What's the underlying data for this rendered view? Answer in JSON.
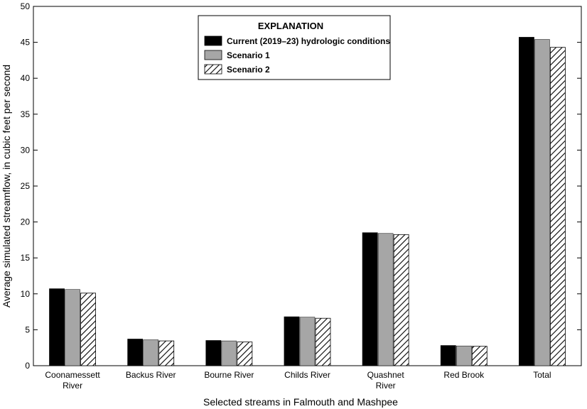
{
  "chart_data": {
    "type": "bar",
    "title": "",
    "xlabel": "Selected streams in Falmouth and Mashpee",
    "ylabel": "Average simulated streamflow, in cubic feet per second",
    "ylim": [
      0,
      50
    ],
    "yticks": [
      0,
      5,
      10,
      15,
      20,
      25,
      30,
      35,
      40,
      45,
      50
    ],
    "categories": [
      [
        "Coonamessett",
        "River"
      ],
      [
        "Backus River"
      ],
      [
        "Bourne River"
      ],
      [
        "Childs River"
      ],
      [
        "Quashnet",
        "River"
      ],
      [
        "Red Brook"
      ],
      [
        "Total"
      ]
    ],
    "legend": {
      "title": "EXPLANATION",
      "placement": "top-center"
    },
    "series": [
      {
        "name": "Current (2019–23) hydrologic conditions",
        "color": "#000000",
        "pattern": "solid",
        "values": [
          10.7,
          3.7,
          3.5,
          6.8,
          18.5,
          2.8,
          45.7
        ]
      },
      {
        "name": "Scenario 1",
        "color": "#a6a6a6",
        "pattern": "solid",
        "values": [
          10.6,
          3.6,
          3.45,
          6.75,
          18.4,
          2.75,
          45.4
        ]
      },
      {
        "name": "Scenario 2",
        "color": "#000000",
        "pattern": "diagonal-hatch",
        "values": [
          10.1,
          3.45,
          3.3,
          6.6,
          18.25,
          2.7,
          44.3
        ]
      }
    ],
    "grid": false
  }
}
